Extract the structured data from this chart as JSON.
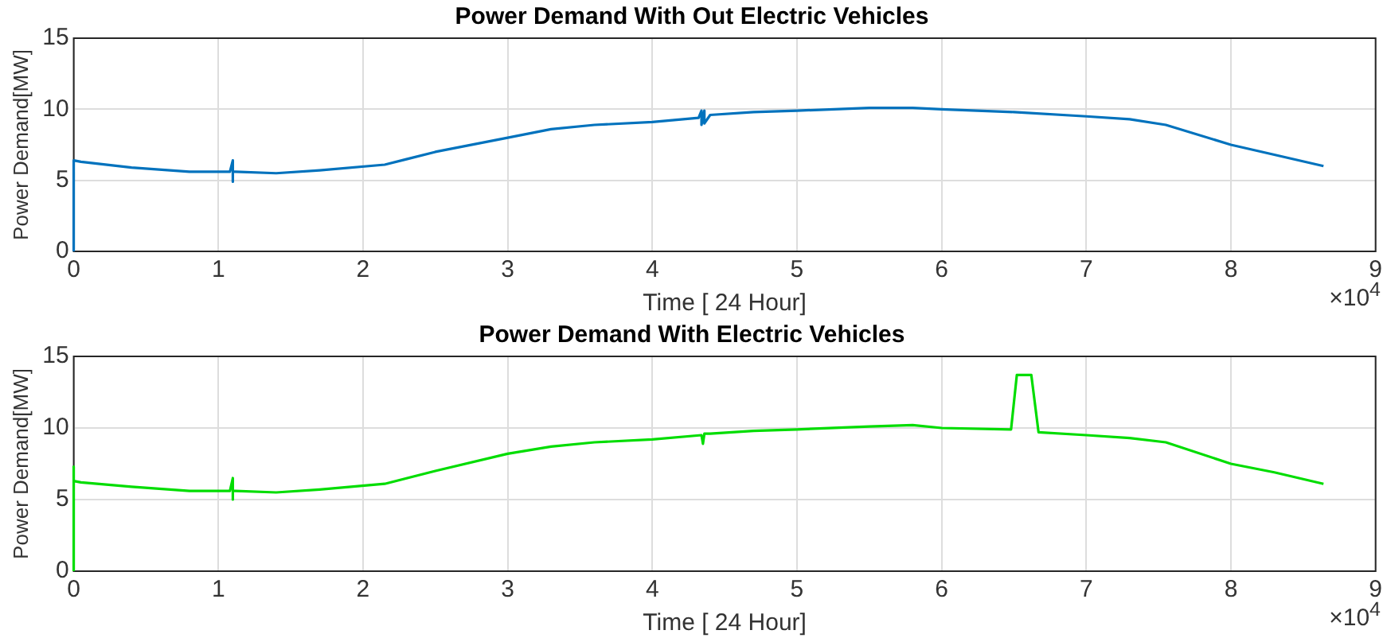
{
  "chart_data": [
    {
      "type": "line",
      "title": "Power Demand With Out Electric Vehicles",
      "xlabel": "Time [ 24 Hour]",
      "ylabel": "Power Demand[MW]",
      "annotations": [
        "×10$^{4}$"
      ],
      "x": [
        0,
        0,
        0.05,
        0.4,
        0.8,
        1.08,
        1.1,
        1.1,
        1.1,
        1.12,
        1.4,
        1.7,
        2.15,
        2.5,
        3.0,
        3.3,
        3.6,
        4.0,
        4.32,
        4.34,
        4.34,
        4.36,
        4.36,
        4.4,
        4.7,
        5.0,
        5.5,
        5.8,
        6.0,
        6.5,
        7.0,
        7.3,
        7.55,
        8.0,
        8.3,
        8.64
      ],
      "series": [
        {
          "color": "#0072bd",
          "values": [
            0,
            6.4,
            6.3,
            5.9,
            5.6,
            5.6,
            6.4,
            4.9,
            5.6,
            5.6,
            5.5,
            5.7,
            6.1,
            7.0,
            8.0,
            8.6,
            8.9,
            9.1,
            9.4,
            9.9,
            8.9,
            9.9,
            9.0,
            9.6,
            9.8,
            9.9,
            10.1,
            10.1,
            10.0,
            9.8,
            9.5,
            9.3,
            8.9,
            7.5,
            6.8,
            6.0
          ]
        }
      ],
      "xlim": [
        0,
        9
      ],
      "xticks": [
        0,
        1,
        2,
        3,
        4,
        5,
        6,
        7,
        8,
        9
      ],
      "ylim": [
        0,
        15
      ],
      "yticks": [
        0,
        5,
        10,
        15
      ],
      "grid": true,
      "legend": false
    },
    {
      "type": "line",
      "title": "Power Demand With Electric Vehicles",
      "xlabel": "Time [ 24 Hour]",
      "ylabel": "Power Demand[MW]",
      "annotations": [
        "×10$^{4}$"
      ],
      "x": [
        0,
        0,
        0,
        0.05,
        0.4,
        0.8,
        1.08,
        1.1,
        1.1,
        1.1,
        1.12,
        1.4,
        1.7,
        2.15,
        2.5,
        3.0,
        3.3,
        3.6,
        4.0,
        4.34,
        4.35,
        4.36,
        4.4,
        4.7,
        5.0,
        5.5,
        5.8,
        6.0,
        6.48,
        6.52,
        6.62,
        6.67,
        7.0,
        7.3,
        7.55,
        8.0,
        8.3,
        8.64
      ],
      "series": [
        {
          "color": "#00dd00",
          "values": [
            0,
            7.3,
            6.3,
            6.2,
            5.9,
            5.6,
            5.6,
            6.5,
            5.0,
            5.6,
            5.6,
            5.5,
            5.7,
            6.1,
            7.0,
            8.2,
            8.7,
            9.0,
            9.2,
            9.5,
            8.9,
            9.6,
            9.6,
            9.8,
            9.9,
            10.1,
            10.2,
            10.0,
            9.9,
            13.7,
            13.7,
            9.7,
            9.5,
            9.3,
            9.0,
            7.5,
            6.9,
            6.1
          ]
        }
      ],
      "xlim": [
        0,
        9
      ],
      "xticks": [
        0,
        1,
        2,
        3,
        4,
        5,
        6,
        7,
        8,
        9
      ],
      "ylim": [
        0,
        15
      ],
      "yticks": [
        0,
        5,
        10,
        15
      ],
      "grid": true,
      "legend": false
    }
  ]
}
